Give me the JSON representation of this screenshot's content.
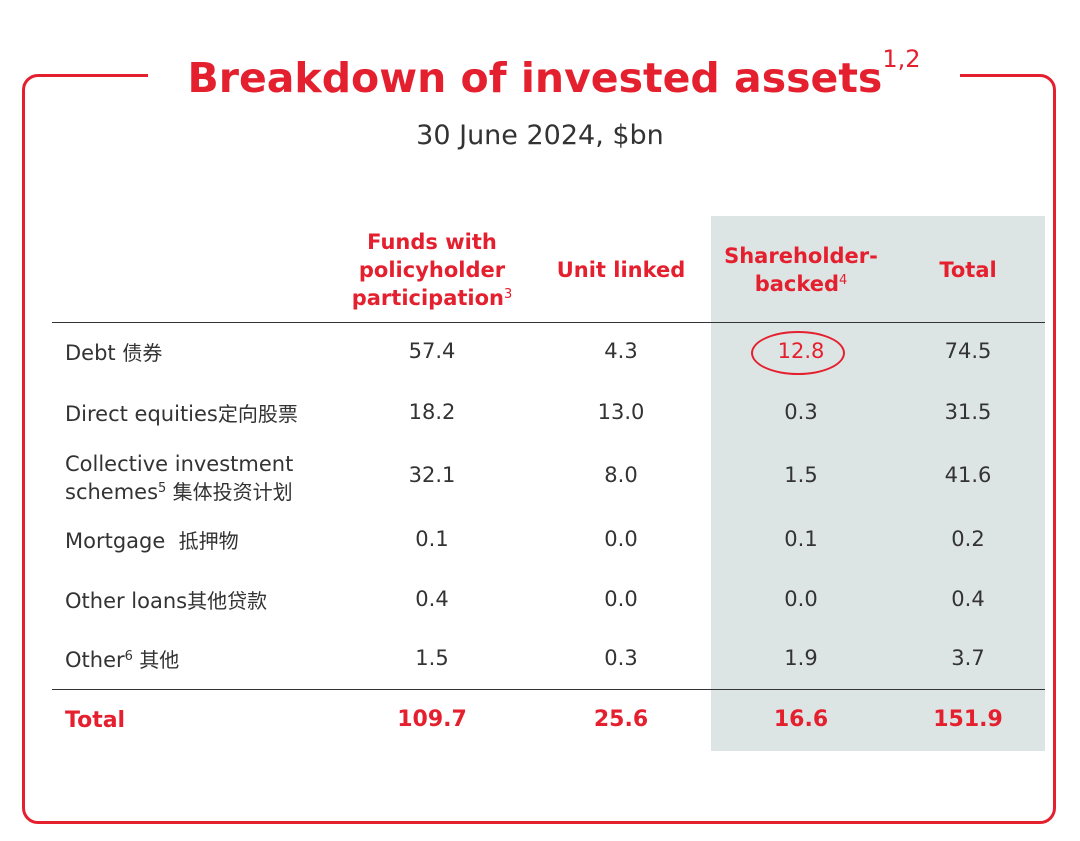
{
  "title": {
    "text": "Breakdown of invested assets",
    "footnote": "1,2"
  },
  "subtitle": "30 June 2024, $bn",
  "columns": [
    {
      "line1": "Funds with",
      "line2": "policyholder",
      "line3": "participation",
      "footnote": "3"
    },
    {
      "line1": "Unit linked"
    },
    {
      "line1": "Shareholder-",
      "line2": "backed",
      "footnote": "4"
    },
    {
      "line1": "Total"
    }
  ],
  "rows": [
    {
      "label": "Debt ",
      "label_zh": "债券",
      "values": [
        "57.4",
        "4.3",
        "12.8",
        "74.5"
      ]
    },
    {
      "label": "Direct equities",
      "label_zh": "定向股票",
      "values": [
        "18.2",
        "13.0",
        "0.3",
        "31.5"
      ]
    },
    {
      "label_line1": "Collective investment",
      "label_line2": "schemes",
      "footnote": "5",
      "label_zh": " 集体投资计划",
      "values": [
        "32.1",
        "8.0",
        "1.5",
        "41.6"
      ]
    },
    {
      "label": "Mortgage  ",
      "label_zh": "抵押物",
      "values": [
        "0.1",
        "0.0",
        "0.1",
        "0.2"
      ]
    },
    {
      "label": "Other loans",
      "label_zh": "其他贷款",
      "values": [
        "0.4",
        "0.0",
        "0.0",
        "0.4"
      ]
    },
    {
      "label": "Other",
      "footnote": "6",
      "label_zh": " 其他",
      "values": [
        "1.5",
        "0.3",
        "1.9",
        "3.7"
      ]
    }
  ],
  "total": {
    "label": "Total",
    "values": [
      "109.7",
      "25.6",
      "16.6",
      "151.9"
    ]
  },
  "colors": {
    "accent": "#e4202f",
    "shade": "#dde4e4",
    "text": "#333333"
  }
}
